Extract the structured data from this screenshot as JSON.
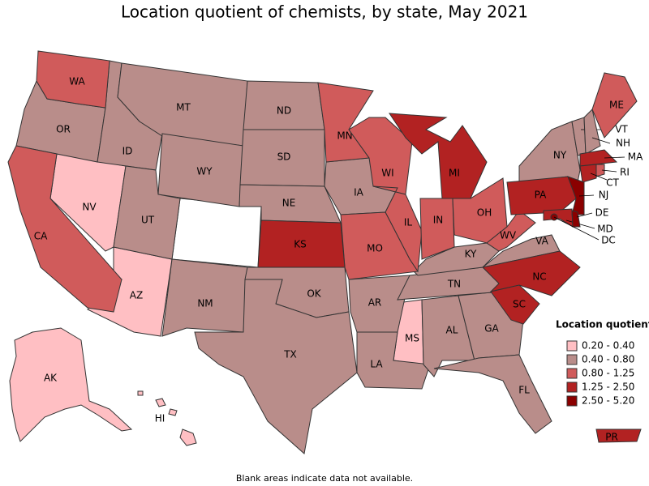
{
  "title": "Location quotient of chemists, by state, May 2021",
  "legend": {
    "title": "Location quotient",
    "bins": [
      {
        "label": "0.20 - 0.40",
        "color": "#ffbfc3",
        "states": [
          "NV",
          "AZ",
          "MS",
          "AK",
          "HI"
        ]
      },
      {
        "label": "0.40 - 0.80",
        "color": "#b98d8a",
        "states": [
          "OR",
          "ID",
          "MT",
          "WY",
          "UT",
          "NM",
          "ND",
          "SD",
          "NE",
          "IA",
          "OK",
          "TX",
          "AR",
          "LA",
          "AL",
          "GA",
          "FL",
          "TN",
          "KY",
          "VA",
          "NY",
          "VT",
          "NH"
        ]
      },
      {
        "label": "0.80 - 1.25",
        "color": "#d05b5b",
        "states": [
          "WA",
          "CA",
          "MN",
          "WI",
          "IL",
          "IN",
          "OH",
          "WV",
          "MO",
          "ME",
          "RI"
        ]
      },
      {
        "label": "1.25 - 2.50",
        "color": "#b22222",
        "states": [
          "MI",
          "KS",
          "PA",
          "NC",
          "SC",
          "MA",
          "CT",
          "MD",
          "PR"
        ]
      },
      {
        "label": "2.50 - 5.20",
        "color": "#8b0000",
        "states": [
          "NJ",
          "DE",
          "DC"
        ]
      }
    ]
  },
  "footnote": "Blank areas indicate data not available."
}
